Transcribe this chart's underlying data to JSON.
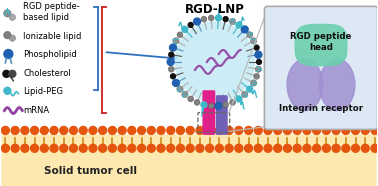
{
  "bg_color": "#ffffff",
  "title": "RGD-LNP",
  "cell_color": "#fde8b0",
  "cell_membrane_dot_color": "#e6550d",
  "cell_tail_color": "#c8860a",
  "lnp_core_color": "#c8ecf5",
  "box_bg": "#dce9f5",
  "box_border": "#aaaaaa",
  "rgd_head_color": "#6ecfb0",
  "integrin_color": "#a090d0",
  "bottom_label": "Solid tumor cell",
  "lnp_label": "RGD-LNP",
  "magenta_col": "#e0208a",
  "purple_col": "#7060b8",
  "gray_dark": "#555555",
  "gray_mid": "#888888",
  "gray_light": "#b0b0b0",
  "blue_dark": "#2060b0",
  "blue_mid": "#5090c0",
  "cyan_col": "#40b8c8",
  "black_col": "#111111",
  "mrna_col": "#9040a0",
  "bracket_blue": "#3070c0",
  "bracket_red": "#cc2020",
  "arrow_blue": "#3070c0"
}
